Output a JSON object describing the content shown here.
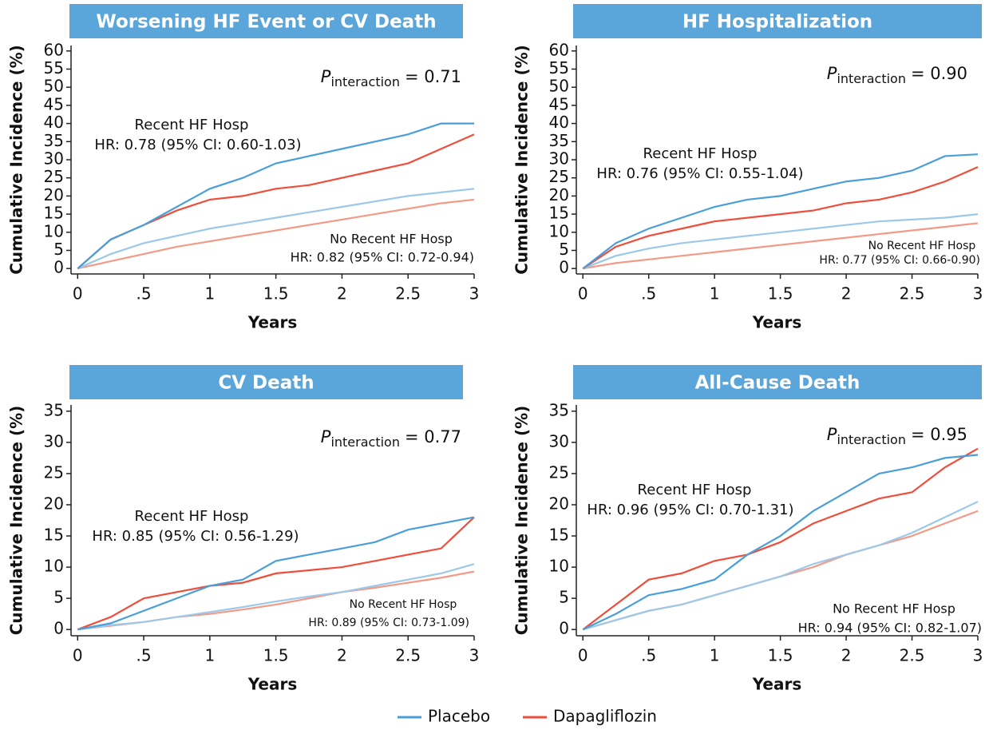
{
  "chart_data": [
    {
      "type": "line",
      "title": "Worsening HF Event or CV Death",
      "y_label": "Cumulative Incidence (%)",
      "x_label": "Years",
      "x": [
        0,
        0.25,
        0.5,
        0.75,
        1,
        1.25,
        1.5,
        1.75,
        2,
        2.25,
        2.5,
        2.75,
        3
      ],
      "series": [
        {
          "name": "Placebo",
          "color": "#4a9fd8",
          "values": [
            0,
            8,
            12,
            17,
            22,
            25,
            29,
            31,
            33,
            35,
            37,
            40,
            40
          ]
        },
        {
          "name": "Dapagliflozin",
          "color": "#ee4e3b",
          "values": [
            0,
            8,
            12,
            16,
            19,
            20,
            22,
            23,
            25,
            27,
            29,
            33,
            37
          ]
        },
        {
          "color": "#9cc8ea",
          "values": [
            0,
            4,
            7,
            9,
            11,
            12.5,
            14,
            15.5,
            17,
            18.5,
            20,
            21,
            22
          ]
        },
        {
          "color": "#f29a86",
          "values": [
            0,
            2,
            4,
            6,
            7.5,
            9,
            10.5,
            12,
            13.5,
            15,
            16.5,
            18,
            19
          ]
        }
      ],
      "xlim": [
        -0.05,
        3
      ],
      "ylim": [
        -1.5,
        61.5
      ],
      "xticks": [
        0,
        {
          "value": 0.5,
          "label": ".5"
        },
        1,
        1.5,
        2,
        2.5,
        3
      ],
      "yticks": [
        0,
        5,
        10,
        15,
        20,
        25,
        30,
        35,
        40,
        45,
        50,
        55,
        60
      ],
      "annotations": {
        "p_interaction": {
          "symbol": "P",
          "subscript": "interaction",
          "text": "= 0.71"
        },
        "recent_label": "Recent HF Hosp",
        "recent_hr": "HR: 0.78 (95% CI: 0.60-1.03)",
        "no_recent_label": "No Recent HF Hosp",
        "no_recent_hr": "HR: 0.82 (95% CI: 0.72-0.94)"
      }
    },
    {
      "type": "line",
      "title": "HF Hospitalization",
      "y_label": "Cumulative Incidence (%)",
      "x_label": "Years",
      "x": [
        0,
        0.25,
        0.5,
        0.75,
        1,
        1.25,
        1.5,
        1.75,
        2,
        2.25,
        2.5,
        2.75,
        3
      ],
      "series": [
        {
          "name": "Placebo",
          "color": "#4a9fd8",
          "values": [
            0,
            7,
            11,
            14,
            17,
            19,
            20,
            22,
            24,
            25,
            27,
            31,
            31.5
          ]
        },
        {
          "name": "Dapagliflozin",
          "color": "#ee4e3b",
          "values": [
            0,
            6,
            9,
            11,
            13,
            14,
            15,
            16,
            18,
            19,
            21,
            24,
            28
          ]
        },
        {
          "color": "#9cc8ea",
          "values": [
            0,
            3.5,
            5.5,
            7,
            8,
            9,
            10,
            11,
            12,
            13,
            13.5,
            14,
            15
          ]
        },
        {
          "color": "#f29a86",
          "values": [
            0,
            1.5,
            2.5,
            3.5,
            4.5,
            5.5,
            6.5,
            7.5,
            8.5,
            9.5,
            10.5,
            11.5,
            12.5
          ]
        }
      ],
      "xlim": [
        -0.05,
        3
      ],
      "ylim": [
        -1.5,
        61.5
      ],
      "xticks": [
        0,
        {
          "value": 0.5,
          "label": ".5"
        },
        1,
        1.5,
        2,
        2.5,
        3
      ],
      "yticks": [
        0,
        5,
        10,
        15,
        20,
        25,
        30,
        35,
        40,
        45,
        50,
        55,
        60
      ],
      "annotations": {
        "p_interaction": {
          "symbol": "P",
          "subscript": "interaction",
          "text": "= 0.90"
        },
        "recent_label": "Recent HF Hosp",
        "recent_hr": "HR: 0.76 (95% CI: 0.55-1.04)",
        "no_recent_label": "No Recent HF Hosp",
        "no_recent_hr": "HR: 0.77 (95% CI: 0.66-0.90)"
      }
    },
    {
      "type": "line",
      "title": "CV Death",
      "y_label": "Cumulative Incidence (%)",
      "x_label": "Years",
      "x": [
        0,
        0.25,
        0.5,
        0.75,
        1,
        1.25,
        1.5,
        1.75,
        2,
        2.25,
        2.5,
        2.75,
        3
      ],
      "series": [
        {
          "name": "Placebo",
          "color": "#4a9fd8",
          "values": [
            0,
            1,
            3,
            5,
            7,
            8,
            11,
            12,
            13,
            14,
            16,
            17,
            18
          ]
        },
        {
          "name": "Dapagliflozin",
          "color": "#ee4e3b",
          "values": [
            0,
            2,
            5,
            6,
            7,
            7.5,
            9,
            9.5,
            10,
            11,
            12,
            13,
            18
          ]
        },
        {
          "color": "#9cc8ea",
          "values": [
            0,
            0.7,
            1.2,
            2,
            2.8,
            3.6,
            4.5,
            5.3,
            6,
            7,
            8,
            9,
            10.5
          ]
        },
        {
          "color": "#f29a86",
          "values": [
            0,
            0.6,
            1.2,
            2,
            2.5,
            3.2,
            4,
            5,
            6,
            6.7,
            7.5,
            8.3,
            9.3
          ]
        }
      ],
      "xlim": [
        -0.05,
        3
      ],
      "ylim": [
        -1,
        36
      ],
      "xticks": [
        0,
        {
          "value": 0.5,
          "label": ".5"
        },
        1,
        1.5,
        2,
        2.5,
        3
      ],
      "yticks": [
        0,
        5,
        10,
        15,
        20,
        25,
        30,
        35
      ],
      "annotations": {
        "p_interaction": {
          "symbol": "P",
          "subscript": "interaction",
          "text": "= 0.77"
        },
        "recent_label": "Recent HF Hosp",
        "recent_hr": "HR: 0.85 (95% CI: 0.56-1.29)",
        "no_recent_label": "No Recent HF Hosp",
        "no_recent_hr": "HR: 0.89 (95% CI: 0.73-1.09)"
      }
    },
    {
      "type": "line",
      "title": "All-Cause Death",
      "y_label": "Cumulative Incidence (%)",
      "x_label": "Years",
      "x": [
        0,
        0.25,
        0.5,
        0.75,
        1,
        1.25,
        1.5,
        1.75,
        2,
        2.25,
        2.5,
        2.75,
        3
      ],
      "series": [
        {
          "name": "Placebo",
          "color": "#4a9fd8",
          "values": [
            0,
            2.5,
            5.5,
            6.5,
            8,
            12,
            15,
            19,
            22,
            25,
            26,
            27.5,
            28
          ]
        },
        {
          "name": "Dapagliflozin",
          "color": "#ee4e3b",
          "values": [
            0,
            4,
            8,
            9,
            11,
            12,
            14,
            17,
            19,
            21,
            22,
            26,
            29
          ]
        },
        {
          "color": "#9cc8ea",
          "values": [
            0,
            1.5,
            3,
            4,
            5.5,
            7,
            8.5,
            10.5,
            12,
            13.5,
            15.5,
            18,
            20.5
          ]
        },
        {
          "color": "#f29a86",
          "values": [
            0,
            1.5,
            3,
            4,
            5.5,
            7,
            8.5,
            10,
            12,
            13.5,
            15,
            17,
            19
          ]
        }
      ],
      "xlim": [
        -0.05,
        3
      ],
      "ylim": [
        -1,
        36
      ],
      "xticks": [
        0,
        {
          "value": 0.5,
          "label": ".5"
        },
        1,
        1.5,
        2,
        2.5,
        3
      ],
      "yticks": [
        0,
        5,
        10,
        15,
        20,
        25,
        30,
        35
      ],
      "annotations": {
        "p_interaction": {
          "symbol": "P",
          "subscript": "interaction",
          "text": "= 0.95"
        },
        "recent_label": "Recent HF Hosp",
        "recent_hr": "HR: 0.96 (95% CI: 0.70-1.31)",
        "no_recent_label": "No Recent HF Hosp",
        "no_recent_hr": "HR: 0.94 (95% CI: 0.82-1.07)"
      }
    }
  ]
}
